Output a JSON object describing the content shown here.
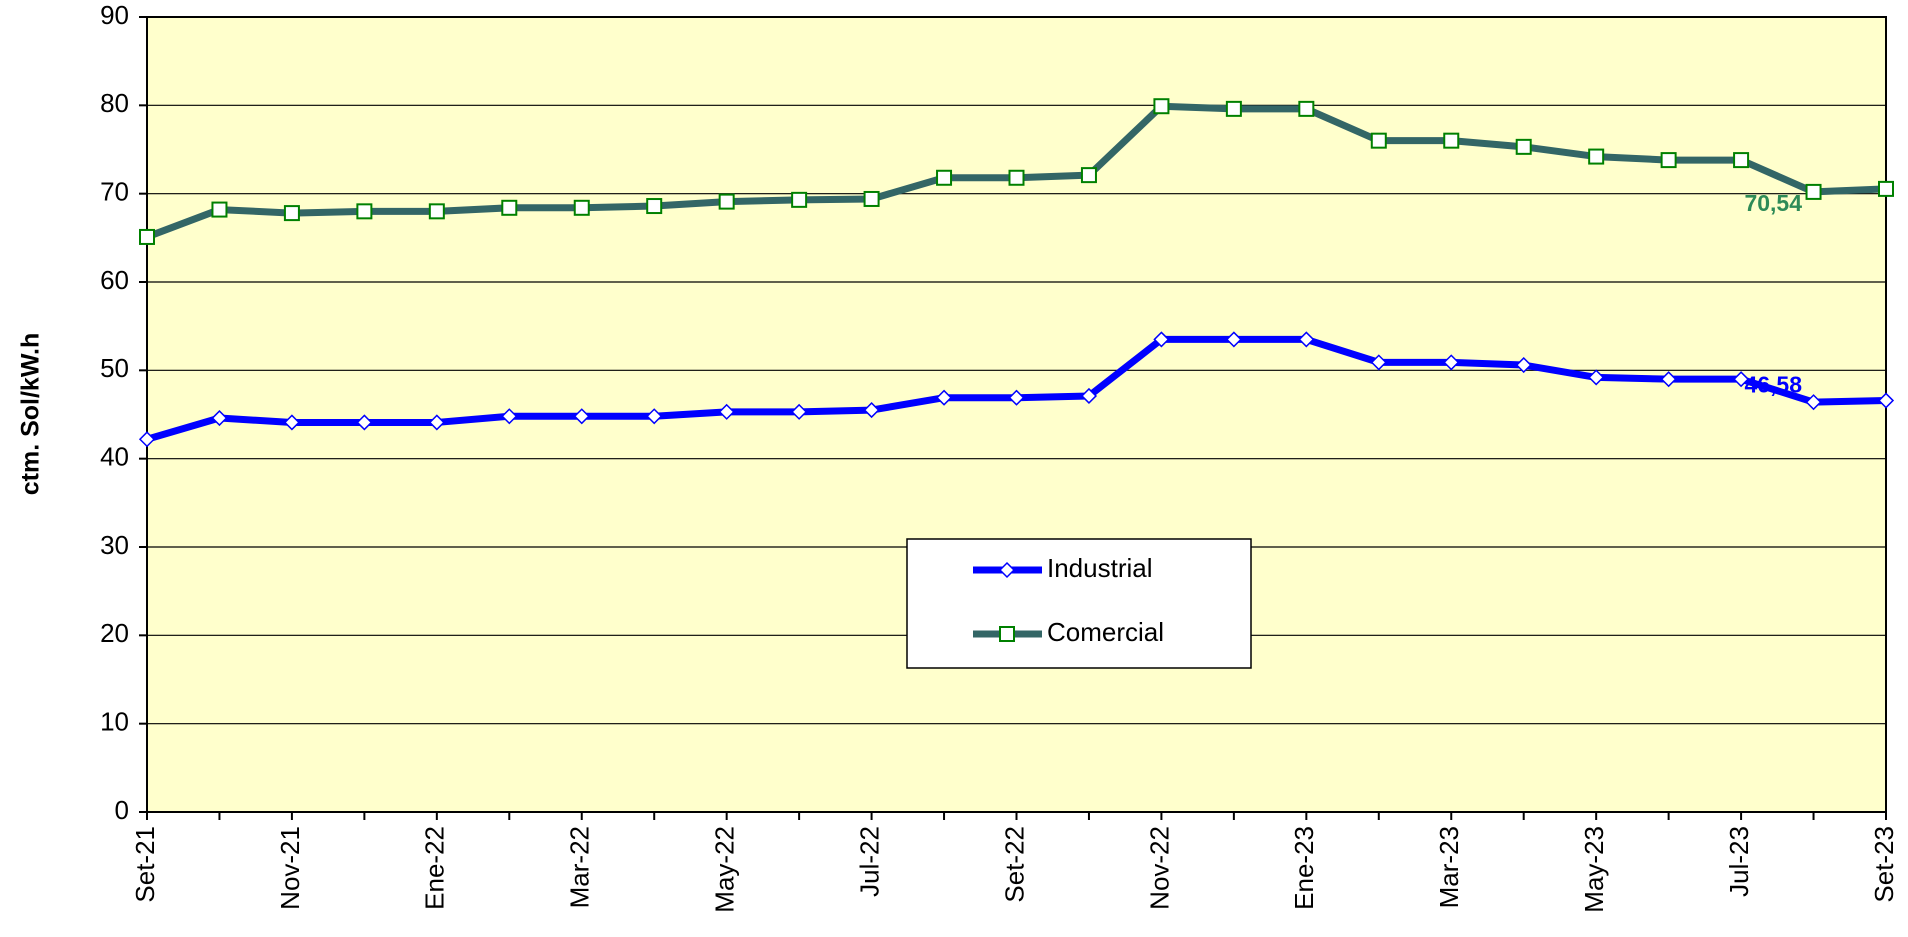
{
  "chart_data": {
    "type": "line",
    "y_label": "ctm. Sol/kW.h",
    "categories": [
      "Set-21",
      null,
      "Nov-21",
      null,
      "Ene-22",
      null,
      "Mar-22",
      null,
      "May-22",
      null,
      "Jul-22",
      null,
      "Set-22",
      null,
      "Nov-22",
      null,
      "Ene-23",
      null,
      "Mar-23",
      null,
      "May-23",
      null,
      "Jul-23",
      null,
      "Set-23"
    ],
    "series": [
      {
        "name": "Industrial",
        "color": "#0000ff",
        "marker": "diamond",
        "marker_color": "#0000ff",
        "values": [
          42.2,
          44.6,
          44.1,
          44.1,
          44.1,
          44.8,
          44.8,
          44.8,
          45.3,
          45.3,
          45.5,
          46.9,
          46.9,
          47.1,
          53.5,
          53.5,
          53.5,
          50.9,
          50.9,
          50.6,
          49.2,
          49.0,
          49.0,
          46.4,
          46.58
        ],
        "value_labels": [
          null,
          null,
          null,
          null,
          null,
          null,
          null,
          null,
          null,
          null,
          null,
          null,
          null,
          null,
          null,
          null,
          null,
          null,
          null,
          null,
          null,
          null,
          null,
          null,
          "46,58"
        ]
      },
      {
        "name": "Comercial",
        "color": "#336666",
        "marker": "square",
        "marker_color": "#008000",
        "values": [
          65.1,
          68.2,
          67.8,
          68.0,
          68.0,
          68.4,
          68.4,
          68.6,
          69.1,
          69.3,
          69.4,
          71.8,
          71.8,
          72.1,
          79.9,
          79.6,
          79.6,
          76.0,
          76.0,
          75.3,
          74.2,
          73.8,
          73.8,
          70.2,
          70.54
        ],
        "value_labels": [
          null,
          null,
          null,
          null,
          null,
          null,
          null,
          null,
          null,
          null,
          null,
          null,
          null,
          null,
          null,
          null,
          null,
          null,
          null,
          null,
          null,
          null,
          null,
          null,
          "70,54"
        ]
      }
    ],
    "ylim": [
      0,
      90
    ],
    "yticks": [
      0,
      10,
      20,
      30,
      40,
      50,
      60,
      70,
      80,
      90
    ],
    "grid": true,
    "legend": "center",
    "background": "#ffffcc"
  }
}
